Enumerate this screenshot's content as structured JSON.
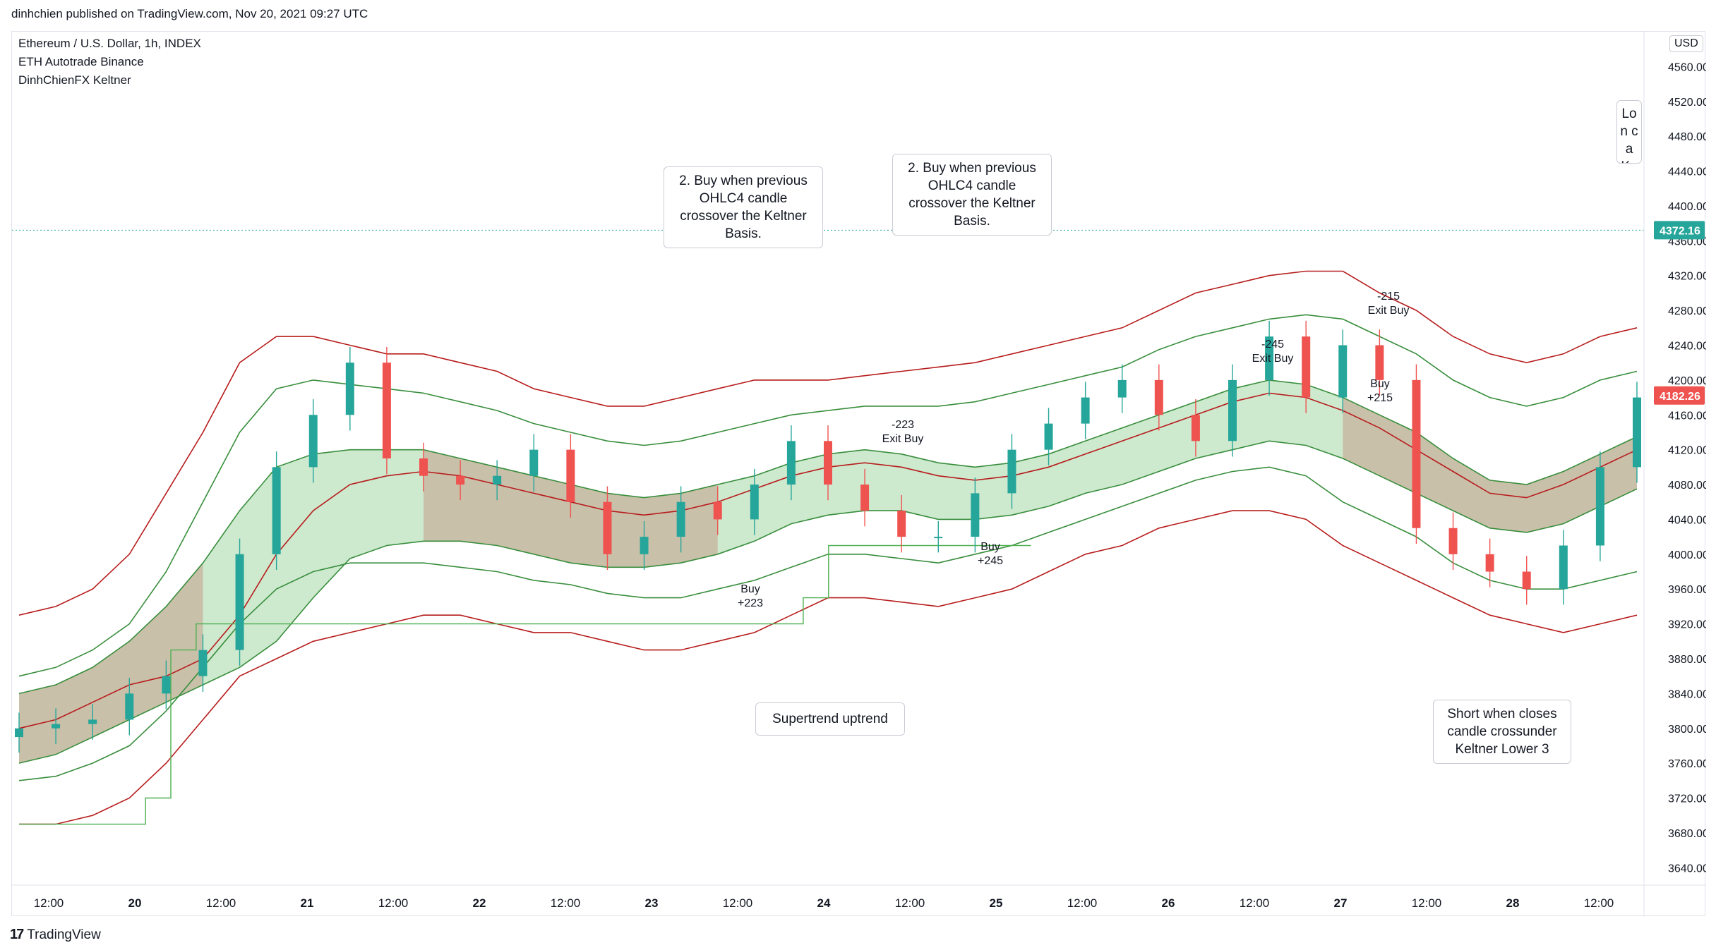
{
  "header": {
    "published": "dinhchien published on TradingView.com, Nov 20, 2021 09:27 UTC"
  },
  "legend": {
    "symbol": "Ethereum / U.S. Dollar, 1h, INDEX",
    "strategy": "ETH Autotrade Binance",
    "indicator": "DinhChienFX Keltner"
  },
  "currency_label": "USD",
  "footer": {
    "brand": "TradingView",
    "logo_mark": "17"
  },
  "annotations": {
    "buy_note_1": "2. Buy when previous OHLC4 candle crossover the Keltner Basis.",
    "buy_note_2": "2. Buy when previous OHLC4 candle crossover the Keltner Basis.",
    "supertrend_note": "Supertrend uptrend",
    "short_note": "Short when closes candle crossunder Keltner Lower 3",
    "long_note_partial": "Lon ca Ke"
  },
  "trade_labels": [
    {
      "text": "Buy",
      "sub": "+223"
    },
    {
      "text": "-223",
      "sub": "Exit Buy"
    },
    {
      "text": "Buy",
      "sub": "+245"
    },
    {
      "text": "-245",
      "sub": "Exit Buy"
    },
    {
      "text": "Buy",
      "sub": "+215"
    },
    {
      "text": "-215",
      "sub": "Exit Buy"
    }
  ],
  "colors": {
    "up": "#26a69a",
    "down": "#ef5350",
    "bull_fill": "#4caf50",
    "bear_fill": "#b71c1c",
    "green_band": "#388e3c",
    "red_band": "#b71c1c",
    "supertrend": "#4caf50",
    "stop": "#b71c1c",
    "signal_bar": "#7e57c2",
    "exit_marker": "#d500f9",
    "entry_marker": "#2962ff"
  },
  "chart_data": {
    "type": "candlestick",
    "title": "Ethereum / U.S. Dollar, 1h, INDEX",
    "y_axis": {
      "min": 3620,
      "max": 4600,
      "ticks": [
        3640,
        3680,
        3720,
        3760,
        3800,
        3840,
        3880,
        3920,
        3960,
        4000,
        4040,
        4080,
        4120,
        4160,
        4200,
        4240,
        4280,
        4320,
        4360,
        4400,
        4440,
        4480,
        4520,
        4560
      ]
    },
    "x_axis": {
      "ticks": [
        "12:00",
        "20",
        "12:00",
        "21",
        "12:00",
        "22",
        "12:00",
        "23",
        "12:00",
        "24",
        "12:00",
        "25",
        "12:00",
        "26",
        "12:00",
        "27",
        "12:00",
        "28",
        "12:00"
      ]
    },
    "last_price": 4182.26,
    "reference_price": 4372.16,
    "grid": false,
    "basis": [
      3800,
      3810,
      3830,
      3850,
      3860,
      3880,
      3930,
      4000,
      4050,
      4080,
      4090,
      4095,
      4090,
      4080,
      4070,
      4060,
      4050,
      4045,
      4050,
      4060,
      4075,
      4090,
      4100,
      4105,
      4100,
      4090,
      4085,
      4090,
      4100,
      4115,
      4130,
      4145,
      4160,
      4175,
      4185,
      4180,
      4165,
      4145,
      4120,
      4095,
      4070,
      4065,
      4080,
      4100,
      4120
    ],
    "close": [
      3800,
      3805,
      3810,
      3840,
      3860,
      3890,
      4000,
      4100,
      4160,
      4220,
      4110,
      4090,
      4080,
      4090,
      4120,
      4060,
      4000,
      4020,
      4060,
      4040,
      4080,
      4130,
      4080,
      4050,
      4020,
      4020,
      4070,
      4120,
      4150,
      4180,
      4200,
      4160,
      4130,
      4200,
      4250,
      4180,
      4240,
      4200,
      4030,
      4000,
      3980,
      3960,
      4010,
      4100,
      4180
    ],
    "bands": {
      "upper3": [
        3930,
        3940,
        3960,
        4000,
        4070,
        4140,
        4220,
        4250,
        4250,
        4240,
        4230,
        4230,
        4220,
        4210,
        4190,
        4180,
        4170,
        4170,
        4180,
        4190,
        4200,
        4200,
        4200,
        4205,
        4210,
        4215,
        4220,
        4230,
        4240,
        4250,
        4260,
        4280,
        4300,
        4310,
        4320,
        4325,
        4325,
        4300,
        4280,
        4250,
        4230,
        4220,
        4230,
        4250,
        4260
      ],
      "lower3": [
        3690,
        3690,
        3700,
        3720,
        3760,
        3810,
        3860,
        3880,
        3900,
        3910,
        3920,
        3930,
        3930,
        3920,
        3910,
        3910,
        3900,
        3890,
        3890,
        3900,
        3910,
        3930,
        3950,
        3950,
        3945,
        3940,
        3950,
        3960,
        3980,
        4000,
        4010,
        4030,
        4040,
        4050,
        4050,
        4040,
        4010,
        3990,
        3970,
        3950,
        3930,
        3920,
        3910,
        3920,
        3930
      ],
      "upper2": [
        3860,
        3870,
        3890,
        3920,
        3980,
        4060,
        4140,
        4190,
        4200,
        4195,
        4190,
        4185,
        4175,
        4165,
        4150,
        4140,
        4130,
        4125,
        4130,
        4140,
        4150,
        4160,
        4165,
        4170,
        4170,
        4170,
        4175,
        4185,
        4195,
        4205,
        4215,
        4235,
        4250,
        4260,
        4270,
        4275,
        4270,
        4250,
        4230,
        4200,
        4180,
        4170,
        4180,
        4200,
        4210
      ],
      "lower2": [
        3740,
        3745,
        3760,
        3780,
        3820,
        3870,
        3920,
        3960,
        3980,
        3990,
        3990,
        3990,
        3985,
        3980,
        3970,
        3965,
        3955,
        3950,
        3950,
        3960,
        3970,
        3985,
        4000,
        4000,
        3995,
        3990,
        4000,
        4010,
        4025,
        4040,
        4055,
        4070,
        4085,
        4095,
        4100,
        4090,
        4060,
        4040,
        4020,
        3990,
        3970,
        3960,
        3960,
        3970,
        3980
      ],
      "upper1": [
        3840,
        3850,
        3870,
        3900,
        3940,
        3990,
        4050,
        4100,
        4115,
        4120,
        4120,
        4120,
        4110,
        4100,
        4090,
        4080,
        4070,
        4065,
        4070,
        4080,
        4090,
        4105,
        4115,
        4120,
        4115,
        4105,
        4100,
        4105,
        4115,
        4130,
        4145,
        4160,
        4175,
        4190,
        4200,
        4195,
        4180,
        4160,
        4140,
        4110,
        4085,
        4080,
        4095,
        4115,
        4135
      ],
      "lower1": [
        3760,
        3770,
        3790,
        3810,
        3830,
        3850,
        3870,
        3900,
        3950,
        3995,
        4010,
        4015,
        4015,
        4010,
        4000,
        3990,
        3985,
        3985,
        3990,
        4000,
        4015,
        4035,
        4045,
        4050,
        4050,
        4040,
        4040,
        4045,
        4055,
        4070,
        4080,
        4095,
        4110,
        4120,
        4130,
        4125,
        4110,
        4090,
        4070,
        4050,
        4030,
        4025,
        4035,
        4055,
        4075
      ]
    },
    "supertrend": {
      "values": [
        3690,
        3690,
        3690,
        3690,
        3690,
        3720,
        3890,
        3920,
        3920,
        3920,
        3920,
        3920,
        3920,
        3920,
        3920,
        3920,
        3920,
        3920,
        3920,
        3920,
        3920,
        3920,
        3920,
        3920,
        3920,
        3920,
        3920,
        3920,
        3920,
        3920,
        3920,
        3950,
        4010,
        4010,
        4010,
        4010,
        4010,
        4010,
        4010,
        4010,
        4010
      ]
    },
    "annotation_text": [
      "2. Buy when previous OHLC4 candle crossover the Keltner Basis.",
      "Supertrend uptrend",
      "Short when closes candle crossunder Keltner Lower 3"
    ]
  }
}
